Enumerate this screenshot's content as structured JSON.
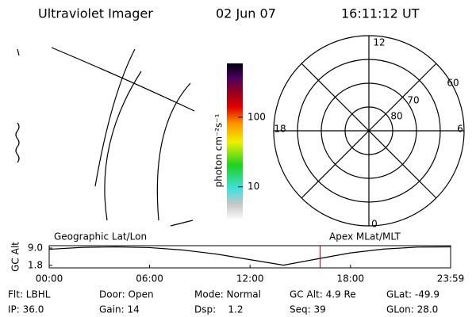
{
  "header": {
    "instrument": "Ultraviolet Imager",
    "date": "02 Jun 07",
    "time": "16:11:12 UT"
  },
  "colorbar": {
    "label": "photon cm⁻²s⁻¹",
    "scale": "log",
    "lim": [
      3.3,
      593
    ],
    "ticks": [
      10,
      100
    ]
  },
  "polar": {
    "mlt_labels": [
      "12",
      "18",
      "6",
      "0"
    ],
    "lat_labels": [
      "60",
      "70",
      "80"
    ]
  },
  "altitude_plot": {
    "ylabel": "GC Alt",
    "left_label": "Geographic Lat/Lon",
    "right_label": "Apex MLat/MLT",
    "x": [
      0,
      2,
      4,
      6,
      8,
      10,
      12,
      14,
      16,
      18,
      20,
      22,
      24
    ],
    "values": [
      8.5,
      9.3,
      9.5,
      9.2,
      8.2,
      6.5,
      4.2,
      1.9,
      4.5,
      7.0,
      8.6,
      9.4,
      9.5
    ],
    "xlim": [
      0,
      23.983
    ],
    "ylim": [
      0.8,
      10
    ],
    "xticks": [
      {
        "value": 0,
        "label": "00:00"
      },
      {
        "value": 6,
        "label": "06:00"
      },
      {
        "value": 12,
        "label": "12:00"
      },
      {
        "value": 18,
        "label": "18:00"
      },
      {
        "value": 23.983,
        "label": "23:59"
      }
    ],
    "yticks": [
      {
        "value": 9.0,
        "label": "9.0"
      },
      {
        "value": 1.8,
        "label": "1.8"
      }
    ],
    "current_time": 16.187,
    "line_color": "#000000",
    "marker_color": "#c00000"
  },
  "status": {
    "row1": [
      "Flt: LBHL",
      "Door: Open",
      "Mode: Normal",
      "GC Alt: 4.9 Re",
      "GLat: -49.9"
    ],
    "row2": [
      "IP: 36.0",
      "Gain: 14",
      "Dsp:    1.2",
      "Seq: 39",
      "GLon: 28.0"
    ]
  }
}
